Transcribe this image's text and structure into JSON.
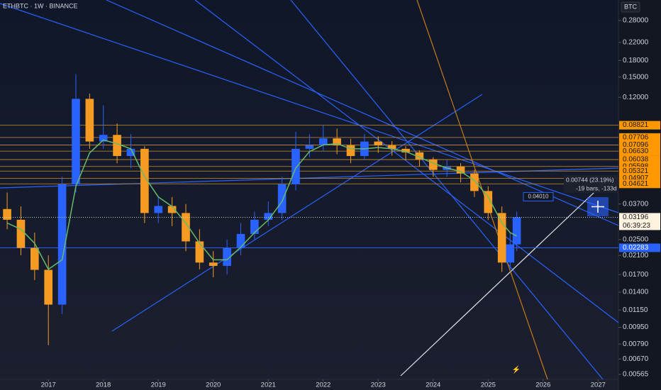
{
  "chart_data": {
    "type": "candlestick",
    "title": "ETHBTC · 1W · BINANCE",
    "currency": "BTC",
    "log_scale": true,
    "up_color": "#2962ff",
    "down_color": "#f59a23",
    "x": [
      2016.25,
      2016.5,
      2016.75,
      2017.0,
      2017.25,
      2017.5,
      2017.75,
      2018.0,
      2018.25,
      2018.5,
      2018.75,
      2019.0,
      2019.25,
      2019.5,
      2019.75,
      2020.0,
      2020.25,
      2020.5,
      2020.75,
      2021.0,
      2021.25,
      2021.5,
      2021.75,
      2022.0,
      2022.25,
      2022.5,
      2022.75,
      2023.0,
      2023.25,
      2023.5,
      2023.75,
      2024.0,
      2024.25,
      2024.5,
      2024.75,
      2025.0,
      2025.25,
      2025.4,
      2025.52
    ],
    "open": [
      0.035,
      0.0311,
      0.0228,
      0.0179,
      0.0122,
      0.046,
      0.118,
      0.0737,
      0.0793,
      0.0628,
      0.068,
      0.0335,
      0.0362,
      0.0335,
      0.0245,
      0.0194,
      0.0187,
      0.0228,
      0.0266,
      0.0311,
      0.0335,
      0.046,
      0.068,
      0.0706,
      0.0763,
      0.0706,
      0.0628,
      0.0737,
      0.0706,
      0.068,
      0.0654,
      0.0605,
      0.0539,
      0.0559,
      0.0518,
      0.0427,
      0.0335,
      0.0194,
      0.0237
    ],
    "high": [
      0.042,
      0.036,
      0.027,
      0.021,
      0.05,
      0.155,
      0.125,
      0.11,
      0.09,
      0.08,
      0.07,
      0.04,
      0.04,
      0.037,
      0.028,
      0.022,
      0.025,
      0.03,
      0.034,
      0.038,
      0.05,
      0.082,
      0.08,
      0.088,
      0.085,
      0.076,
      0.08,
      0.078,
      0.074,
      0.07,
      0.067,
      0.062,
      0.06,
      0.058,
      0.054,
      0.045,
      0.036,
      0.027,
      0.034
    ],
    "low": [
      0.028,
      0.021,
      0.016,
      0.0078,
      0.011,
      0.042,
      0.068,
      0.068,
      0.058,
      0.055,
      0.03,
      0.03,
      0.029,
      0.022,
      0.018,
      0.0165,
      0.017,
      0.021,
      0.025,
      0.029,
      0.031,
      0.043,
      0.062,
      0.066,
      0.064,
      0.058,
      0.06,
      0.065,
      0.063,
      0.06,
      0.056,
      0.05,
      0.05,
      0.047,
      0.04,
      0.031,
      0.0175,
      0.018,
      0.022
    ],
    "close": [
      0.0311,
      0.0228,
      0.0179,
      0.0122,
      0.046,
      0.118,
      0.0737,
      0.0793,
      0.0628,
      0.068,
      0.0335,
      0.0362,
      0.0335,
      0.0245,
      0.0194,
      0.0187,
      0.0228,
      0.0266,
      0.0311,
      0.0335,
      0.046,
      0.068,
      0.0706,
      0.0763,
      0.0706,
      0.0628,
      0.0737,
      0.0706,
      0.068,
      0.0654,
      0.0605,
      0.0539,
      0.0559,
      0.0518,
      0.0427,
      0.0335,
      0.0194,
      0.0237,
      0.03196
    ],
    "ma": {
      "color": "#66bb6a",
      "values": [
        0.03,
        0.028,
        0.024,
        0.018,
        0.02,
        0.045,
        0.065,
        0.075,
        0.072,
        0.068,
        0.05,
        0.04,
        0.036,
        0.03,
        0.024,
        0.02,
        0.02,
        0.023,
        0.027,
        0.031,
        0.038,
        0.055,
        0.066,
        0.071,
        0.072,
        0.068,
        0.068,
        0.069,
        0.068,
        0.066,
        0.062,
        0.058,
        0.055,
        0.053,
        0.048,
        0.04,
        0.03,
        0.027,
        0.026
      ]
    },
    "xlim": [
      2016.12,
      2027.37
    ],
    "xticks": [
      2017,
      2018,
      2019,
      2020,
      2021,
      2022,
      2023,
      2024,
      2025,
      2026,
      2027
    ],
    "ylim": [
      0.00535,
      0.351
    ],
    "yticks": [
      {
        "value": 0.28,
        "label": "0.28000"
      },
      {
        "value": 0.22,
        "label": "0.22000"
      },
      {
        "value": 0.18,
        "label": "0.18000"
      },
      {
        "value": 0.15,
        "label": "0.15000"
      },
      {
        "value": 0.12,
        "label": "0.12000"
      },
      {
        "value": 0.037,
        "label": "0.03700"
      },
      {
        "value": 0.025,
        "label": "0.02500"
      },
      {
        "value": 0.021,
        "label": "0.02100"
      },
      {
        "value": 0.017,
        "label": "0.01700"
      },
      {
        "value": 0.014,
        "label": "0.01400"
      },
      {
        "value": 0.0115,
        "label": "0.01150"
      },
      {
        "value": 0.0095,
        "label": "0.00950"
      },
      {
        "value": 0.0079,
        "label": "0.00790"
      },
      {
        "value": 0.0067,
        "label": "0.00670"
      },
      {
        "value": 0.00565,
        "label": "0.00565"
      }
    ],
    "levels": [
      {
        "value": 0.08821,
        "label": "0.08821"
      },
      {
        "value": 0.07706,
        "label": "0.07706"
      },
      {
        "value": 0.07096,
        "label": "0.07096"
      },
      {
        "value": 0.0663,
        "label": "0.06630"
      },
      {
        "value": 0.06038,
        "label": "0.06038"
      },
      {
        "value": 0.05598,
        "label": "0.05598"
      },
      {
        "value": 0.05321,
        "label": "0.05321"
      },
      {
        "value": 0.04907,
        "label": "0.04907"
      },
      {
        "value": 0.04621,
        "label": "0.04621"
      }
    ],
    "price_line": {
      "value": 0.03196,
      "label": "0.03196",
      "countdown": "06:39:23"
    },
    "blue_line": {
      "value": 0.02283,
      "label": "0.02283"
    },
    "ray_label": {
      "value": 0.0401,
      "label": "0.04010"
    },
    "measure": {
      "change": "0.00744 (23.19%)",
      "span": "-19 bars, -133d"
    }
  }
}
